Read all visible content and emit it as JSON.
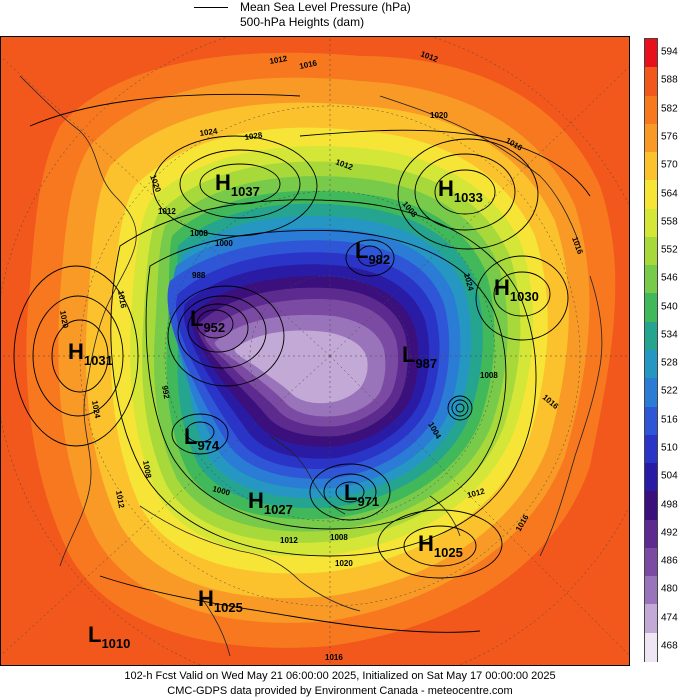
{
  "legend": {
    "line1": "Mean Sea Level Pressure (hPa)",
    "line2": "500-hPa Heights (dam)"
  },
  "colorbar": {
    "levels": [
      "594",
      "588",
      "582",
      "576",
      "570",
      "564",
      "558",
      "552",
      "546",
      "540",
      "534",
      "528",
      "522",
      "516",
      "510",
      "504",
      "498",
      "492",
      "486",
      "480",
      "474",
      "468"
    ],
    "colors": [
      "#e8101a",
      "#f2571c",
      "#f7781f",
      "#f89a25",
      "#fbc22d",
      "#f6e536",
      "#d4e637",
      "#a8d93b",
      "#78cb4a",
      "#41b85a",
      "#25a58f",
      "#2597c2",
      "#2a7cd5",
      "#2f56d6",
      "#2a34c7",
      "#2a1ba5",
      "#3b0f7c",
      "#5d2b8f",
      "#7b4ba3",
      "#9a74ba",
      "#c3a9d6",
      "#efe6f3"
    ]
  },
  "systems": [
    {
      "type": "H",
      "value": "1037"
    },
    {
      "type": "H",
      "value": "1033"
    },
    {
      "type": "H",
      "value": "1030"
    },
    {
      "type": "H",
      "value": "1031"
    },
    {
      "type": "L",
      "value": "952"
    },
    {
      "type": "L",
      "value": "982"
    },
    {
      "type": "L",
      "value": "987"
    },
    {
      "type": "L",
      "value": "974"
    },
    {
      "type": "H",
      "value": "1027"
    },
    {
      "type": "L",
      "value": "971"
    },
    {
      "type": "H",
      "value": "1025"
    },
    {
      "type": "H",
      "value": "1025"
    },
    {
      "type": "L",
      "value": "1010"
    }
  ],
  "isobar_labels": [
    "1016",
    "1012",
    "1024",
    "1028",
    "1020",
    "1012",
    "1008",
    "1000",
    "988",
    "992",
    "1020",
    "1016",
    "1012",
    "1024",
    "1016",
    "1020",
    "1016",
    "1012",
    "1024",
    "1008",
    "1004",
    "1012",
    "1008",
    "1012",
    "1020",
    "1016",
    "1016",
    "1016",
    "1008",
    "1012",
    "1000",
    "1008"
  ],
  "footer": {
    "line1": "102-h Fcst Valid on Wed May 21 06:00:00 2025, Initialized on Sat May 17 00:00:00 2025",
    "line2": "CMC-GDPS data provided by Environment Canada - meteocentre.com"
  }
}
